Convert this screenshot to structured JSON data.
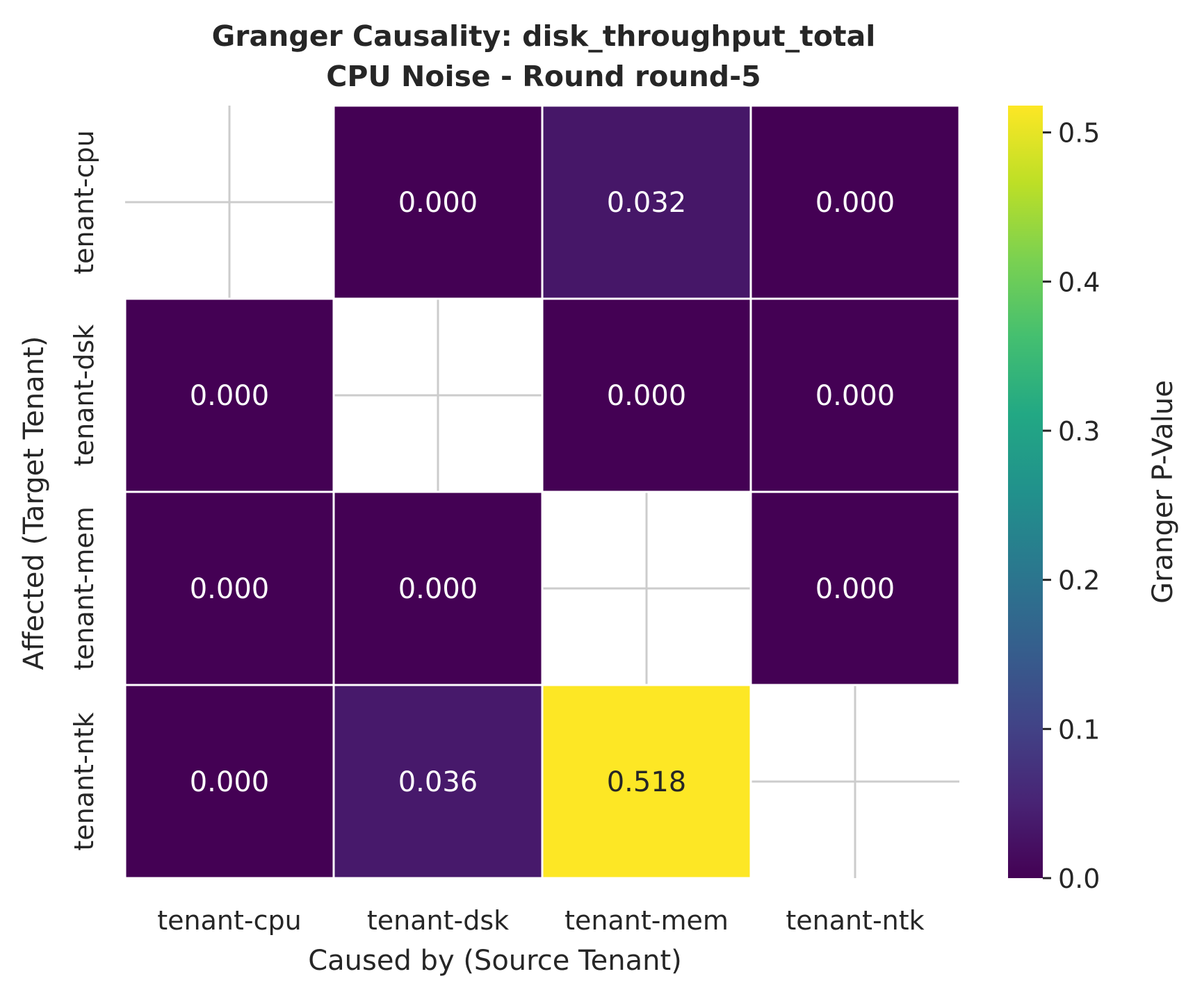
{
  "chart_data": {
    "type": "heatmap",
    "title": "Granger Causality: disk_throughput_total",
    "subtitle": "CPU Noise - Round round-5",
    "xlabel": "Caused by (Source Tenant)",
    "ylabel": "Affected (Target Tenant)",
    "x_categories": [
      "tenant-cpu",
      "tenant-dsk",
      "tenant-mem",
      "tenant-ntk"
    ],
    "y_categories": [
      "tenant-cpu",
      "tenant-dsk",
      "tenant-mem",
      "tenant-ntk"
    ],
    "values": [
      [
        null,
        0.0,
        0.032,
        0.0
      ],
      [
        0.0,
        null,
        0.0,
        0.0
      ],
      [
        0.0,
        0.0,
        null,
        0.0
      ],
      [
        0.0,
        0.036,
        0.518,
        null
      ]
    ],
    "value_labels": [
      [
        "",
        "0.000",
        "0.032",
        "0.000"
      ],
      [
        "0.000",
        "",
        "0.000",
        "0.000"
      ],
      [
        "0.000",
        "0.000",
        "",
        "0.000"
      ],
      [
        "0.000",
        "0.036",
        "0.518",
        ""
      ]
    ],
    "colormap": "viridis",
    "colorbar": {
      "label": "Granger P-Value",
      "range": [
        0.0,
        0.518
      ],
      "ticks": [
        0.0,
        0.1,
        0.2,
        0.3,
        0.4,
        0.5
      ],
      "tick_labels": [
        "0.0",
        "0.1",
        "0.2",
        "0.3",
        "0.4",
        "0.5"
      ]
    },
    "grid": true,
    "colors": {
      "low": "#440154",
      "high": "#fde725",
      "grid": "#cccccc",
      "cell_border": "#ffffff"
    }
  }
}
